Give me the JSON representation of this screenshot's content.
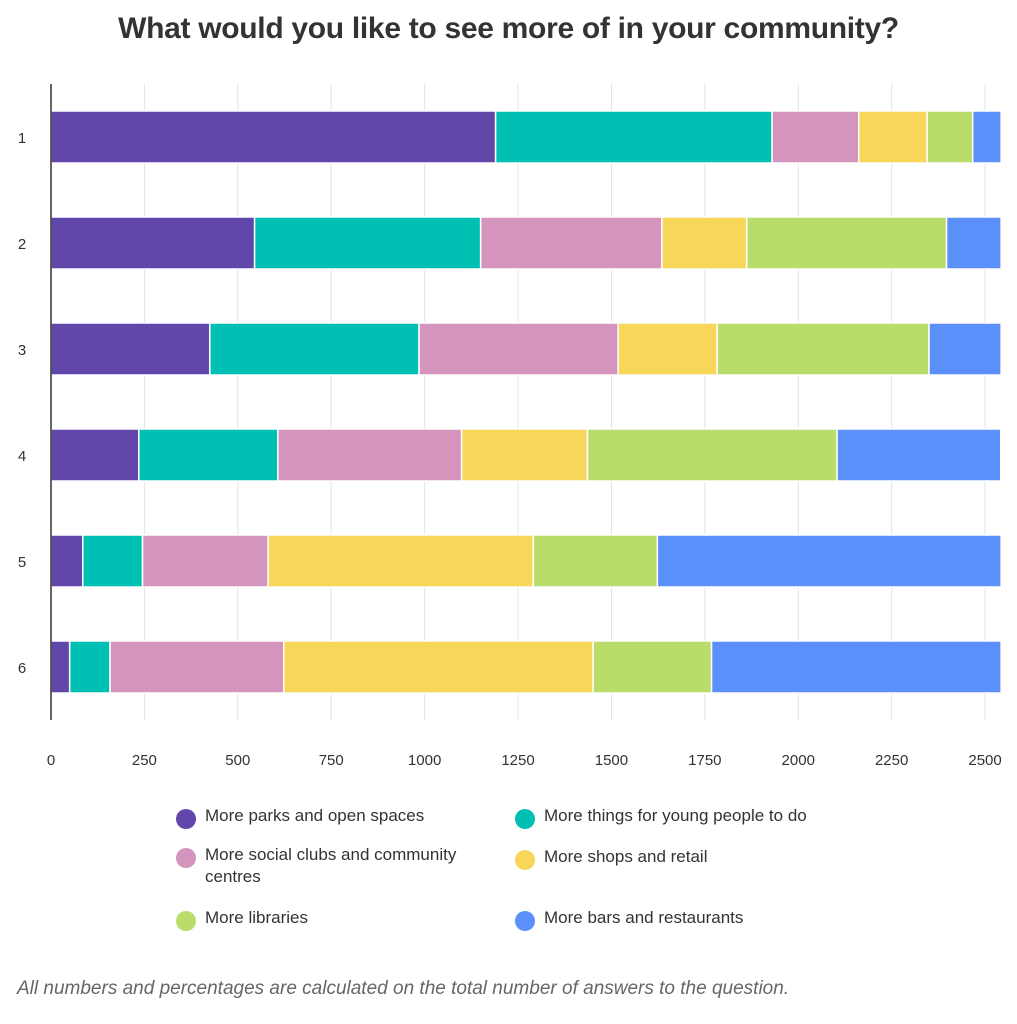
{
  "title": "What would you like to see more of in your community?",
  "footnote": "All numbers and percentages are calculated on the total number of answers to the question.",
  "colors": {
    "parks": "#6247aa",
    "young": "#00bfb3",
    "social": "#d494bd",
    "shops": "#f7d65a",
    "libraries": "#b9dc6a",
    "bars": "#5b8ffa"
  },
  "chart_data": {
    "type": "bar",
    "orientation": "horizontal",
    "stacked": true,
    "categories": [
      "1",
      "2",
      "3",
      "4",
      "5",
      "6"
    ],
    "xlim": [
      0,
      2540
    ],
    "xticks": [
      0,
      250,
      500,
      750,
      1000,
      1250,
      1500,
      1750,
      2000,
      2250,
      2500
    ],
    "grid": true,
    "legend_position": "bottom",
    "series": [
      {
        "name": "More parks and open spaces",
        "color_key": "parks",
        "values": [
          1190,
          545,
          425,
          235,
          85,
          50
        ]
      },
      {
        "name": "More things for young people to do",
        "color_key": "young",
        "values": [
          740,
          605,
          560,
          372,
          160,
          108
        ]
      },
      {
        "name": "More social clubs and community centres",
        "color_key": "social",
        "values": [
          232,
          485,
          533,
          492,
          336,
          465
        ]
      },
      {
        "name": "More shops and retail",
        "color_key": "shops",
        "values": [
          183,
          227,
          265,
          337,
          710,
          828
        ]
      },
      {
        "name": "More libraries",
        "color_key": "libraries",
        "values": [
          122,
          535,
          567,
          668,
          332,
          317
        ]
      },
      {
        "name": "More bars and restaurants",
        "color_key": "bars",
        "values": [
          76,
          146,
          193,
          438,
          920,
          775
        ]
      }
    ]
  }
}
